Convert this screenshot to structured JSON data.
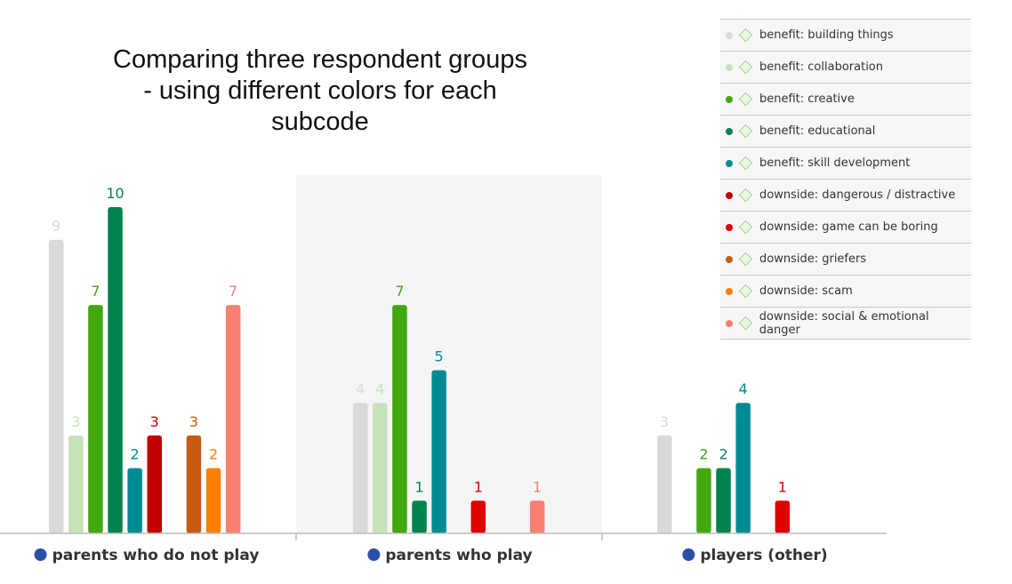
{
  "title": "Comparing three respondent groups - using different colors for each subcode",
  "title_lines": [
    "Comparing three respondent groups",
    "- using different colors for each",
    "subcode"
  ],
  "legend_items": [
    {
      "label": "benefit: building things",
      "color": "#d9d9d9"
    },
    {
      "label": "benefit: collaboration",
      "color": "#c6e2bb"
    },
    {
      "label": "benefit: creative",
      "color": "#43a70e"
    },
    {
      "label": "benefit: educational",
      "color": "#00834e"
    },
    {
      "label": "benefit: skill development",
      "color": "#008b93"
    },
    {
      "label": "downside: dangerous / distractive",
      "color": "#c20000"
    },
    {
      "label": "downside: game can be boring",
      "color": "#e00000"
    },
    {
      "label": "downside: griefers",
      "color": "#c75b12"
    },
    {
      "label": "downside: scam",
      "color": "#ff7f00"
    },
    {
      "label": "downside: social & emotional danger",
      "color": "#f78070"
    }
  ],
  "chart_data": {
    "type": "bar",
    "categories": [
      "parents who do not play",
      "parents who play",
      "players (other)"
    ],
    "series": [
      {
        "name": "benefit: building things",
        "color": "#d9d9d9",
        "values": [
          9,
          4,
          3
        ]
      },
      {
        "name": "benefit: collaboration",
        "color": "#c6e2bb",
        "values": [
          3,
          4,
          null
        ]
      },
      {
        "name": "benefit: creative",
        "color": "#43a70e",
        "values": [
          7,
          7,
          2
        ]
      },
      {
        "name": "benefit: educational",
        "color": "#00834e",
        "values": [
          10,
          1,
          2
        ]
      },
      {
        "name": "benefit: skill development",
        "color": "#008b93",
        "values": [
          2,
          5,
          4
        ]
      },
      {
        "name": "downside: dangerous / distractive",
        "color": "#c20000",
        "values": [
          3,
          null,
          null
        ]
      },
      {
        "name": "downside: game can be boring",
        "color": "#e00000",
        "values": [
          null,
          1,
          1
        ]
      },
      {
        "name": "downside: griefers",
        "color": "#c75b12",
        "values": [
          3,
          null,
          null
        ]
      },
      {
        "name": "downside: scam",
        "color": "#ff7f00",
        "values": [
          2,
          null,
          null
        ]
      },
      {
        "name": "downside: social & emotional danger",
        "color": "#f78070",
        "values": [
          7,
          1,
          null
        ]
      }
    ],
    "category_marker_color": "#2a4fa8",
    "highlight_category": "parents who play",
    "xlabel": "",
    "ylabel": "",
    "ylim": [
      0,
      10
    ],
    "grid": false,
    "legend_position": "top-right"
  }
}
